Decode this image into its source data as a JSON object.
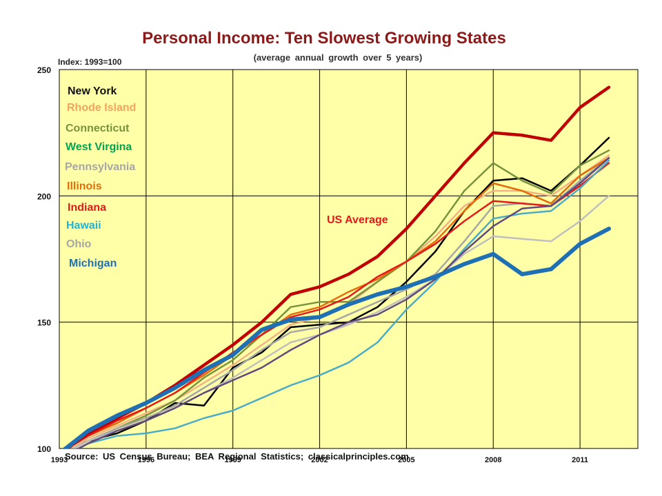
{
  "chart_data": {
    "type": "line",
    "title": "Personal Income: Ten Slowest Growing States",
    "subtitle": "(average annual growth over 5 years)",
    "ylabel": "Index: 1993=100",
    "source": "Source: US Census Bureau; BEA Regional Statistics; classicalprinciples.com",
    "ylim": [
      100,
      250
    ],
    "xlim": [
      1993,
      2013
    ],
    "yticks": [
      100,
      150,
      200,
      250
    ],
    "xticks": [
      "1993",
      "1996",
      "1999",
      "2002",
      "2005",
      "2008",
      "2011"
    ],
    "grid": true,
    "x": [
      1993,
      1994,
      1995,
      1996,
      1997,
      1998,
      1999,
      2000,
      2001,
      2002,
      2003,
      2004,
      2005,
      2006,
      2007,
      2008,
      2009,
      2010,
      2011,
      2012
    ],
    "legend": [
      {
        "name": "New York",
        "color": "#111111"
      },
      {
        "name": "Rhode Island",
        "color": "#f4a460"
      },
      {
        "name": "Connecticut",
        "color": "#77933c"
      },
      {
        "name": "West Virgina",
        "color": "#00a651"
      },
      {
        "name": "Pennsylvania",
        "color": "#a6a6a6"
      },
      {
        "name": "Illinois",
        "color": "#e36c09"
      },
      {
        "name": "Indiana",
        "color": "#e31a1c"
      },
      {
        "name": "Hawaii",
        "color": "#1fb4d8"
      },
      {
        "name": "Ohio",
        "color": "#a6a6a6"
      },
      {
        "name": "Michigan",
        "color": "#1f6fb4"
      }
    ],
    "annotation": {
      "text": "US Average",
      "color": "#e31a1c"
    },
    "series": [
      {
        "name": "New York",
        "color": "#000000",
        "width": 2.5,
        "values": [
          98,
          103,
          106,
          111,
          118,
          117,
          132,
          138,
          148,
          149,
          150,
          156,
          166,
          178,
          194,
          206,
          207,
          202,
          212,
          223
        ]
      },
      {
        "name": "Rhode Island",
        "color": "#f4b183",
        "width": 2.5,
        "values": [
          97,
          104,
          109,
          114,
          119,
          126,
          133,
          141,
          149,
          152,
          157,
          166,
          174,
          184,
          196,
          202,
          202,
          200,
          208,
          216
        ]
      },
      {
        "name": "Connecticut",
        "color": "#77933c",
        "width": 2.5,
        "values": [
          97,
          103,
          108,
          113,
          119,
          128,
          135,
          145,
          156,
          158,
          158,
          166,
          174,
          186,
          202,
          213,
          206,
          201,
          212,
          218
        ]
      },
      {
        "name": "Pennsylvania",
        "color": "#a6a6a6",
        "width": 2.5,
        "values": [
          97,
          103,
          108,
          112,
          117,
          124,
          131,
          139,
          146,
          148,
          153,
          158,
          163,
          169,
          182,
          196,
          197,
          196,
          206,
          215
        ]
      },
      {
        "name": "Illinois",
        "color": "#e36c09",
        "width": 2.5,
        "values": [
          98,
          105,
          110,
          116,
          122,
          129,
          137,
          145,
          153,
          156,
          162,
          167,
          174,
          182,
          194,
          205,
          202,
          197,
          208,
          215
        ]
      },
      {
        "name": "Indiana",
        "color": "#e31a1c",
        "width": 2.5,
        "values": [
          98,
          105,
          111,
          116,
          122,
          130,
          138,
          145,
          152,
          155,
          160,
          168,
          174,
          181,
          190,
          198,
          197,
          196,
          204,
          213
        ]
      },
      {
        "name": "Hawaii",
        "color": "#4bacc6",
        "width": 2.5,
        "values": [
          96,
          102,
          105,
          106,
          108,
          112,
          115,
          120,
          125,
          129,
          134,
          142,
          155,
          166,
          179,
          191,
          193,
          194,
          203,
          214
        ]
      },
      {
        "name": "Ohio",
        "color": "#bfbfbf",
        "width": 2.5,
        "values": [
          97,
          103,
          107,
          111,
          116,
          122,
          128,
          135,
          142,
          145,
          149,
          154,
          160,
          167,
          177,
          184,
          183,
          182,
          190,
          200
        ]
      },
      {
        "name": "West Virgina",
        "color": "#604a7b",
        "width": 2.5,
        "values": [
          96,
          102,
          107,
          111,
          116,
          122,
          127,
          132,
          139,
          145,
          150,
          153,
          159,
          167,
          178,
          188,
          195,
          196,
          205,
          215
        ]
      },
      {
        "name": "US Average",
        "color": "#c00000",
        "width": 4.5,
        "values": [
          98,
          106,
          112,
          118,
          125,
          133,
          141,
          150,
          161,
          164,
          169,
          176,
          187,
          200,
          213,
          225,
          224,
          222,
          235,
          243
        ]
      },
      {
        "name": "Michigan",
        "color": "#1f6fb4",
        "width": 6,
        "values": [
          98,
          107,
          113,
          118,
          124,
          131,
          137,
          147,
          151,
          152,
          157,
          161,
          164,
          168,
          173,
          177,
          169,
          171,
          181,
          187
        ]
      }
    ]
  }
}
